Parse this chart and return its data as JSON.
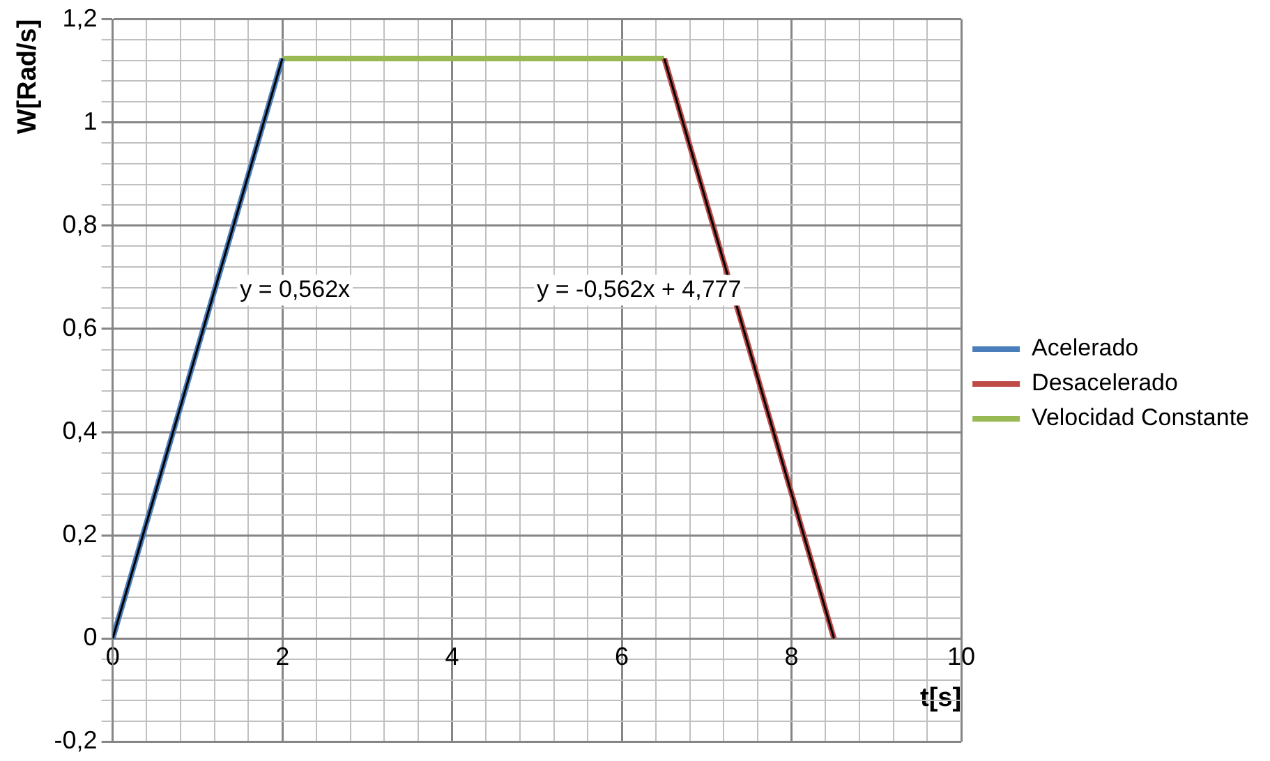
{
  "chart_data": {
    "type": "line",
    "xlabel": "t[s]",
    "ylabel": "W[Rad/s]",
    "xlim": [
      0,
      10
    ],
    "ylim": [
      -0.2,
      1.2
    ],
    "xticks": [
      0,
      {
        "value": 0.4,
        "label": null
      },
      {
        "value": 0.8,
        "label": null
      },
      {
        "value": 1.2,
        "label": null
      },
      {
        "value": 1.6,
        "label": null
      },
      2,
      {
        "value": 2.4,
        "label": null
      },
      {
        "value": 2.8,
        "label": null
      },
      {
        "value": 3.2,
        "label": null
      },
      {
        "value": 3.6,
        "label": null
      },
      4,
      {
        "value": 4.4,
        "label": null
      },
      {
        "value": 4.8,
        "label": null
      },
      {
        "value": 5.2,
        "label": null
      },
      {
        "value": 5.6,
        "label": null
      },
      6,
      {
        "value": 6.4,
        "label": null
      },
      {
        "value": 6.8,
        "label": null
      },
      {
        "value": 7.2,
        "label": null
      },
      {
        "value": 7.6,
        "label": null
      },
      8,
      {
        "value": 8.4,
        "label": null
      },
      {
        "value": 8.8,
        "label": null
      },
      {
        "value": 9.2,
        "label": null
      },
      {
        "value": 9.6,
        "label": null
      },
      10
    ],
    "yticks": [
      {
        "value": -0.2,
        "label": "-0,2"
      },
      {
        "value": -0.16,
        "label": null
      },
      {
        "value": -0.12,
        "label": null
      },
      {
        "value": -0.08,
        "label": null
      },
      {
        "value": -0.04,
        "label": null
      },
      0,
      {
        "value": 0.04,
        "label": null
      },
      {
        "value": 0.08,
        "label": null
      },
      {
        "value": 0.12,
        "label": null
      },
      {
        "value": 0.16,
        "label": null
      },
      {
        "value": 0.2,
        "label": "0,2"
      },
      {
        "value": 0.24,
        "label": null
      },
      {
        "value": 0.28,
        "label": null
      },
      {
        "value": 0.32,
        "label": null
      },
      {
        "value": 0.36,
        "label": null
      },
      {
        "value": 0.4,
        "label": "0,4"
      },
      {
        "value": 0.44,
        "label": null
      },
      {
        "value": 0.48,
        "label": null
      },
      {
        "value": 0.52,
        "label": null
      },
      {
        "value": 0.56,
        "label": null
      },
      {
        "value": 0.6,
        "label": "0,6"
      },
      {
        "value": 0.64,
        "label": null
      },
      {
        "value": 0.68,
        "label": null
      },
      {
        "value": 0.72,
        "label": null
      },
      {
        "value": 0.76,
        "label": null
      },
      {
        "value": 0.8,
        "label": "0,8"
      },
      {
        "value": 0.84,
        "label": null
      },
      {
        "value": 0.88,
        "label": null
      },
      {
        "value": 0.92,
        "label": null
      },
      {
        "value": 0.96,
        "label": null
      },
      1,
      {
        "value": 1.04,
        "label": null
      },
      {
        "value": 1.08,
        "label": null
      },
      {
        "value": 1.12,
        "label": null
      },
      {
        "value": 1.16,
        "label": null
      },
      {
        "value": 1.2,
        "label": "1,2"
      }
    ],
    "series": [
      {
        "name": "Acelerado",
        "color": "#4a7ebb",
        "x": [
          0,
          2
        ],
        "values": [
          0,
          1.124
        ]
      },
      {
        "name": "Desacelerado",
        "color": "#be4b48",
        "x": [
          6.5,
          8.5
        ],
        "values": [
          1.124,
          0
        ]
      },
      {
        "name": "Velocidad Constante",
        "color": "#98b954",
        "x": [
          2,
          6.5
        ],
        "values": [
          1.124,
          1.124
        ]
      },
      {
        "type": "line",
        "color": "#000000",
        "x": [
          0,
          2
        ],
        "values": [
          0,
          1.124
        ]
      },
      {
        "type": "line",
        "color": "#000000",
        "x": [
          6.5,
          8.5
        ],
        "values": [
          1.124,
          0
        ]
      }
    ],
    "annotations": [
      "y = 0,562x",
      "y = -0,562x + 4,777"
    ],
    "grid": true,
    "legend": "right",
    "marker": "none",
    "line_style": "solid"
  }
}
